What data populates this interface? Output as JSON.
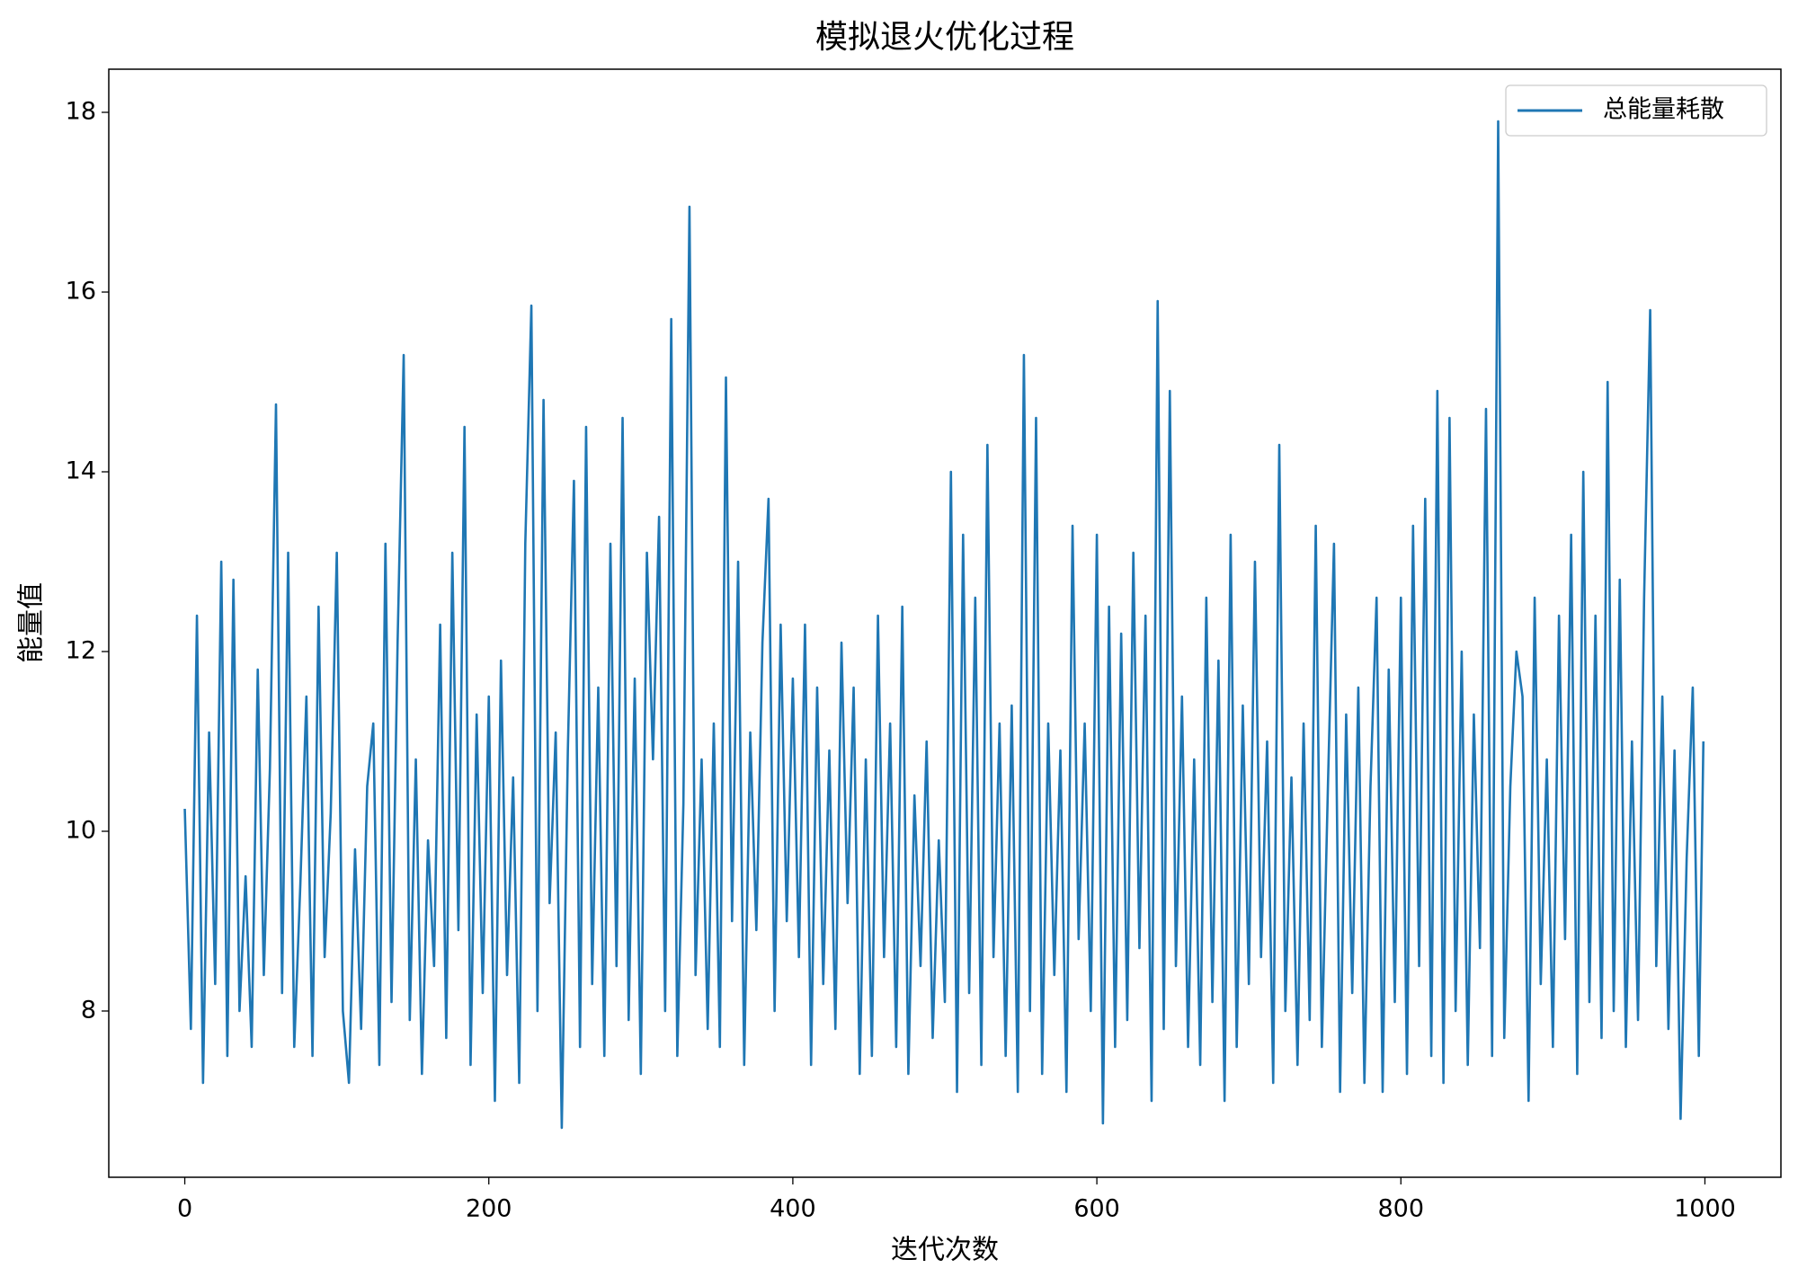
{
  "chart_data": {
    "type": "line",
    "title": "模拟退火优化过程",
    "xlabel": "迭代次数",
    "ylabel": "能量值",
    "xlim": [
      -50,
      1050
    ],
    "ylim": [
      6.15,
      18.48
    ],
    "xticks": [
      0,
      200,
      400,
      600,
      800,
      1000
    ],
    "yticks": [
      8,
      10,
      12,
      14,
      16,
      18
    ],
    "legend": "upper right",
    "x": [
      0,
      4,
      8,
      12,
      16,
      20,
      24,
      28,
      32,
      36,
      40,
      44,
      48,
      52,
      56,
      60,
      64,
      68,
      72,
      76,
      80,
      84,
      88,
      92,
      96,
      100,
      104,
      108,
      112,
      116,
      120,
      124,
      128,
      132,
      136,
      140,
      144,
      148,
      152,
      156,
      160,
      164,
      168,
      172,
      176,
      180,
      184,
      188,
      192,
      196,
      200,
      204,
      208,
      212,
      216,
      220,
      224,
      228,
      232,
      236,
      240,
      244,
      248,
      252,
      256,
      260,
      264,
      268,
      272,
      276,
      280,
      284,
      288,
      292,
      296,
      300,
      304,
      308,
      312,
      316,
      320,
      324,
      328,
      332,
      336,
      340,
      344,
      348,
      352,
      356,
      360,
      364,
      368,
      372,
      376,
      380,
      384,
      388,
      392,
      396,
      400,
      404,
      408,
      412,
      416,
      420,
      424,
      428,
      432,
      436,
      440,
      444,
      448,
      452,
      456,
      460,
      464,
      468,
      472,
      476,
      480,
      484,
      488,
      492,
      496,
      500,
      504,
      508,
      512,
      516,
      520,
      524,
      528,
      532,
      536,
      540,
      544,
      548,
      552,
      556,
      560,
      564,
      568,
      572,
      576,
      580,
      584,
      588,
      592,
      596,
      600,
      604,
      608,
      612,
      616,
      620,
      624,
      628,
      632,
      636,
      640,
      644,
      648,
      652,
      656,
      660,
      664,
      668,
      672,
      676,
      680,
      684,
      688,
      692,
      696,
      700,
      704,
      708,
      712,
      716,
      720,
      724,
      728,
      732,
      736,
      740,
      744,
      748,
      752,
      756,
      760,
      764,
      768,
      772,
      776,
      780,
      784,
      788,
      792,
      796,
      800,
      804,
      808,
      812,
      816,
      820,
      824,
      828,
      832,
      836,
      840,
      844,
      848,
      852,
      856,
      860,
      864,
      868,
      872,
      876,
      880,
      884,
      888,
      892,
      896,
      900,
      904,
      908,
      912,
      916,
      920,
      924,
      928,
      932,
      936,
      940,
      944,
      948,
      952,
      956,
      960,
      964,
      968,
      972,
      976,
      980,
      984,
      988,
      992,
      996,
      999
    ],
    "series": [
      {
        "name": "总能量耗散",
        "color": "#1f77b4",
        "values": [
          10.25,
          7.8,
          12.4,
          7.2,
          11.1,
          8.3,
          13.0,
          7.5,
          12.8,
          8.0,
          9.5,
          7.6,
          11.8,
          8.4,
          10.7,
          14.75,
          8.2,
          13.1,
          7.6,
          9.4,
          11.5,
          7.5,
          12.5,
          8.6,
          10.2,
          13.1,
          8.0,
          7.2,
          9.8,
          7.8,
          10.5,
          11.2,
          7.4,
          13.2,
          8.1,
          12.1,
          15.3,
          7.9,
          10.8,
          7.3,
          9.9,
          8.5,
          12.3,
          7.7,
          13.1,
          8.9,
          14.5,
          7.4,
          11.3,
          8.2,
          11.5,
          7.0,
          11.9,
          8.4,
          10.6,
          7.2,
          13.2,
          15.85,
          8.0,
          14.8,
          9.2,
          11.1,
          6.7,
          10.9,
          13.9,
          7.6,
          14.5,
          8.3,
          11.6,
          7.5,
          13.2,
          8.5,
          14.6,
          7.9,
          11.7,
          7.3,
          13.1,
          10.8,
          13.5,
          8.0,
          15.7,
          7.5,
          10.3,
          16.95,
          8.4,
          10.8,
          7.8,
          11.2,
          7.6,
          15.05,
          9.0,
          13.0,
          7.4,
          11.1,
          8.9,
          12.1,
          13.7,
          8.0,
          12.3,
          9.0,
          11.7,
          8.6,
          12.3,
          7.4,
          11.6,
          8.3,
          10.9,
          7.8,
          12.1,
          9.2,
          11.6,
          7.3,
          10.8,
          7.5,
          12.4,
          8.6,
          11.2,
          7.6,
          12.5,
          7.3,
          10.4,
          8.5,
          11.0,
          7.7,
          9.9,
          8.1,
          14.0,
          7.1,
          13.3,
          8.2,
          12.6,
          7.4,
          14.3,
          8.6,
          11.2,
          7.5,
          11.4,
          7.1,
          15.3,
          8.0,
          14.6,
          7.3,
          11.2,
          8.4,
          10.9,
          7.1,
          13.4,
          8.8,
          11.2,
          8.0,
          13.3,
          6.75,
          12.5,
          7.6,
          12.2,
          7.9,
          13.1,
          8.7,
          12.4,
          7.0,
          15.9,
          7.8,
          14.9,
          8.5,
          11.5,
          7.6,
          10.8,
          7.4,
          12.6,
          8.1,
          11.9,
          7.0,
          13.3,
          7.6,
          11.4,
          8.3,
          13.0,
          8.6,
          11.0,
          7.2,
          14.3,
          8.0,
          10.6,
          7.4,
          11.2,
          7.9,
          13.4,
          7.6,
          10.5,
          13.2,
          7.1,
          11.3,
          8.2,
          11.6,
          7.2,
          10.5,
          12.6,
          7.1,
          11.8,
          8.1,
          12.6,
          7.3,
          13.4,
          8.5,
          13.7,
          7.5,
          14.9,
          7.2,
          14.6,
          8.0,
          12.0,
          7.4,
          11.3,
          8.7,
          14.7,
          7.5,
          17.9,
          7.7,
          10.5,
          12.0,
          11.5,
          7.0,
          12.6,
          8.3,
          10.8,
          7.6,
          12.4,
          8.8,
          13.3,
          7.3,
          14.0,
          8.1,
          12.4,
          7.7,
          15.0,
          8.0,
          12.8,
          7.6,
          11.0,
          7.9,
          12.6,
          15.8,
          8.5,
          11.5,
          7.8,
          10.9,
          6.8,
          9.7,
          11.6,
          7.5,
          11.0
        ]
      }
    ]
  }
}
